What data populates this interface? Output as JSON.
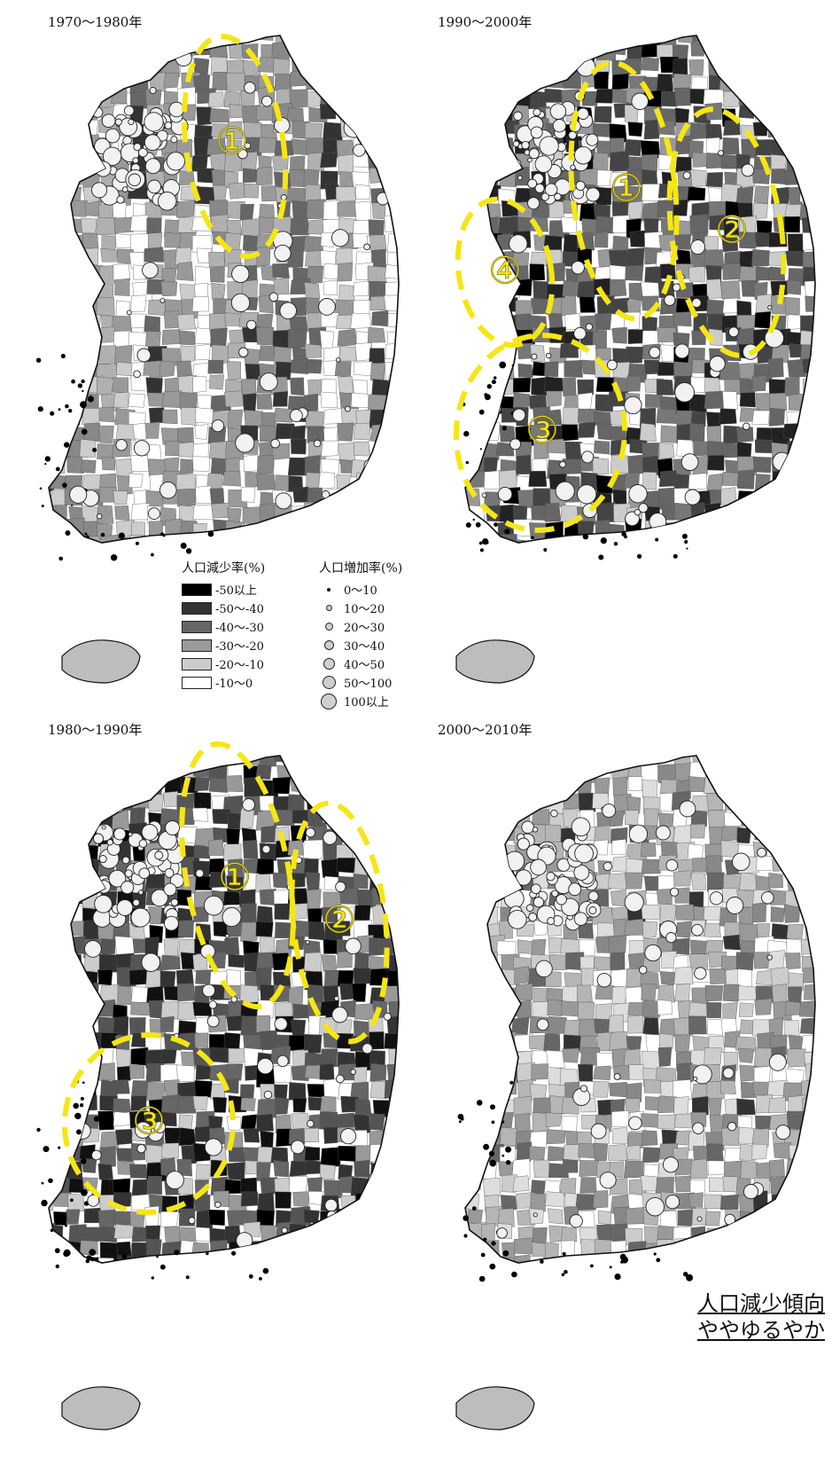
{
  "panels": [
    {
      "period": "1970〜1980年",
      "regions": [
        "①"
      ]
    },
    {
      "period": "1990〜2000年",
      "regions": [
        "①",
        "②",
        "③",
        "④"
      ]
    },
    {
      "period": "1980〜1990年",
      "regions": [
        "①",
        "②",
        "③"
      ]
    },
    {
      "period": "2000〜2010年",
      "regions": []
    }
  ],
  "legend": {
    "decline": {
      "title": "人口減少率(%)",
      "items": [
        {
          "label": "-50以上",
          "color": "#000000"
        },
        {
          "label": "-50〜-40",
          "color": "#333333"
        },
        {
          "label": "-40〜-30",
          "color": "#666666"
        },
        {
          "label": "-30〜-20",
          "color": "#999999"
        },
        {
          "label": "-20〜-10",
          "color": "#cccccc"
        },
        {
          "label": "-10〜0",
          "color": "#ffffff"
        }
      ]
    },
    "increase": {
      "title": "人口増加率(%)",
      "items": [
        {
          "label": "0〜10"
        },
        {
          "label": "10〜20"
        },
        {
          "label": "20〜30"
        },
        {
          "label": "30〜40"
        },
        {
          "label": "40〜50"
        },
        {
          "label": "50〜100"
        },
        {
          "label": "100以上"
        }
      ]
    }
  },
  "note": {
    "line1": "人口減少傾向",
    "line2": "ややゆるやか"
  },
  "colors": {
    "highlight": "#f5e614",
    "outline": "#111111"
  }
}
